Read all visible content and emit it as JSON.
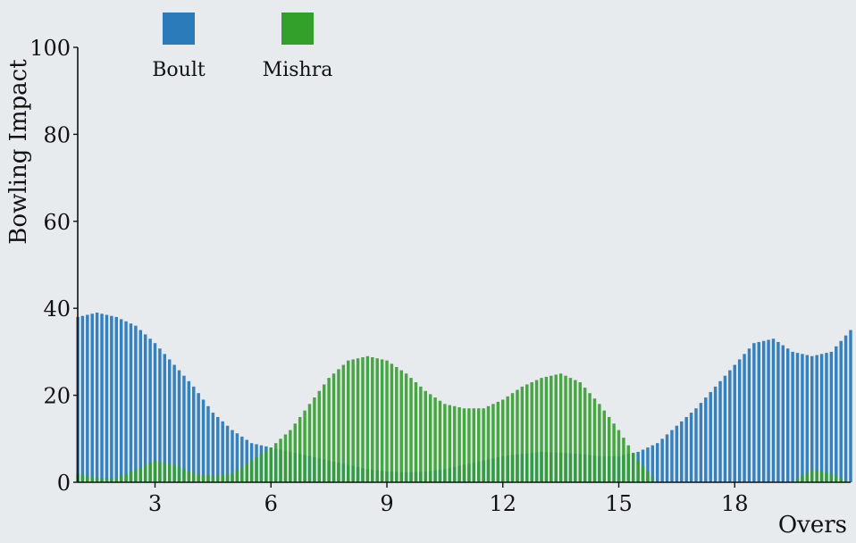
{
  "chart_data": {
    "type": "bar",
    "title": "",
    "xlabel": "Overs",
    "ylabel": "Bowling Impact",
    "ylim": [
      0,
      100
    ],
    "xlim": [
      1,
      21
    ],
    "x_ticks": [
      3,
      6,
      9,
      12,
      15,
      18
    ],
    "y_ticks": [
      0,
      20,
      40,
      60,
      80,
      100
    ],
    "grid": false,
    "legend_position": "top-left",
    "x": [
      1,
      1.5,
      2,
      2.5,
      3,
      3.5,
      4,
      4.5,
      5,
      5.5,
      6,
      6.5,
      7,
      7.5,
      8,
      8.5,
      9,
      9.5,
      10,
      10.5,
      11,
      11.5,
      12,
      12.5,
      13,
      13.5,
      14,
      14.5,
      15,
      15.5,
      16,
      16.5,
      17,
      17.5,
      18,
      18.5,
      19,
      19.5,
      20,
      20.5,
      21
    ],
    "series": [
      {
        "name": "Boult",
        "color": "#2b7bba",
        "values": [
          38,
          39,
          38,
          36,
          32,
          27,
          22,
          16,
          12,
          9,
          8,
          7,
          6,
          5,
          4,
          3,
          2.5,
          2.3,
          2.5,
          3,
          4,
          5,
          6,
          6.5,
          7,
          6.8,
          6.5,
          6,
          6,
          7,
          9,
          13,
          17,
          22,
          27,
          32,
          33,
          30,
          29,
          30,
          35
        ]
      },
      {
        "name": "Mishra",
        "color": "#33a02c",
        "values": [
          2,
          1,
          1,
          3,
          5,
          4,
          2,
          1.5,
          2,
          5,
          8,
          12,
          18,
          24,
          28,
          29,
          28,
          25,
          21,
          18,
          17,
          17,
          19,
          22,
          24,
          25,
          23,
          18,
          12,
          5,
          0,
          0,
          0,
          0,
          0,
          0,
          0,
          0,
          3,
          2,
          0
        ]
      }
    ]
  }
}
